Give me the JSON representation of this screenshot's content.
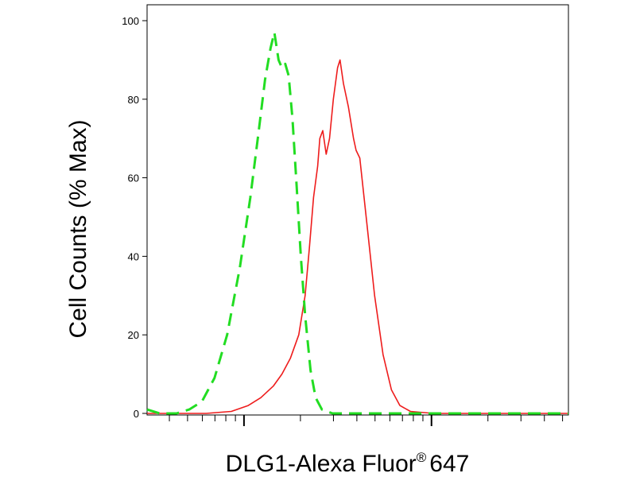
{
  "chart_data": {
    "type": "line",
    "title": "",
    "xlabel": "DLG1-Alexa Fluor",
    "xlabel_superscript": "®",
    "xlabel_suffix": "647",
    "ylabel": "Cell Counts (% Max)",
    "x_scale": "log",
    "ylim": [
      0,
      100
    ],
    "y_ticks": [
      "0",
      "20",
      "40",
      "60",
      "80",
      "100"
    ],
    "grid": false,
    "legend": "none",
    "series": [
      {
        "color": "#ee1c1c",
        "line_style": "solid",
        "points": [
          [
            0.0,
            0
          ],
          [
            0.14,
            0
          ],
          [
            0.2,
            0.5
          ],
          [
            0.24,
            2
          ],
          [
            0.27,
            4
          ],
          [
            0.3,
            7
          ],
          [
            0.32,
            10
          ],
          [
            0.34,
            14
          ],
          [
            0.36,
            20
          ],
          [
            0.375,
            30
          ],
          [
            0.385,
            42
          ],
          [
            0.395,
            55
          ],
          [
            0.405,
            63
          ],
          [
            0.41,
            70
          ],
          [
            0.417,
            72
          ],
          [
            0.425,
            66
          ],
          [
            0.433,
            70
          ],
          [
            0.442,
            80
          ],
          [
            0.452,
            88
          ],
          [
            0.458,
            90
          ],
          [
            0.466,
            84
          ],
          [
            0.478,
            78
          ],
          [
            0.49,
            70
          ],
          [
            0.496,
            67
          ],
          [
            0.505,
            65
          ],
          [
            0.52,
            50
          ],
          [
            0.54,
            30
          ],
          [
            0.56,
            15
          ],
          [
            0.58,
            6
          ],
          [
            0.6,
            2
          ],
          [
            0.625,
            0.5
          ],
          [
            0.68,
            0
          ],
          [
            1.0,
            0
          ]
        ]
      },
      {
        "color": "#22dd22",
        "line_style": "dashed",
        "points": [
          [
            0.0,
            1
          ],
          [
            0.03,
            0
          ],
          [
            0.07,
            0
          ],
          [
            0.1,
            1
          ],
          [
            0.13,
            3
          ],
          [
            0.16,
            9
          ],
          [
            0.19,
            20
          ],
          [
            0.22,
            37
          ],
          [
            0.245,
            55
          ],
          [
            0.265,
            72
          ],
          [
            0.28,
            85
          ],
          [
            0.293,
            93
          ],
          [
            0.302,
            97
          ],
          [
            0.312,
            90
          ],
          [
            0.32,
            88
          ],
          [
            0.328,
            89
          ],
          [
            0.336,
            86
          ],
          [
            0.345,
            75
          ],
          [
            0.355,
            58
          ],
          [
            0.365,
            40
          ],
          [
            0.375,
            25
          ],
          [
            0.388,
            11
          ],
          [
            0.4,
            4
          ],
          [
            0.415,
            1
          ],
          [
            0.44,
            0
          ],
          [
            1.0,
            0
          ]
        ]
      }
    ]
  }
}
